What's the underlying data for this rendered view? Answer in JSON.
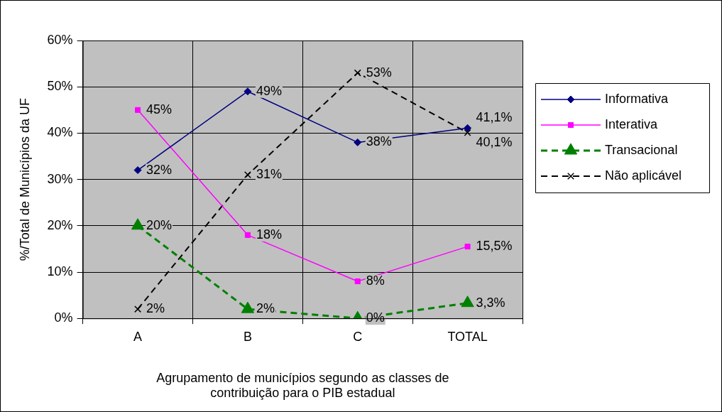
{
  "chart_data": {
    "type": "line",
    "xlabel": "Agrupamento de municípios segundo as classes de\ncontribuição para o PIB estadual",
    "ylabel": "%/Total de Municípios da UF",
    "categories": [
      "A",
      "B",
      "C",
      "TOTAL"
    ],
    "ylim": [
      0,
      60
    ],
    "yticks": [
      {
        "value": 0,
        "label": "0%"
      },
      {
        "value": 10,
        "label": "10%"
      },
      {
        "value": 20,
        "label": "20%"
      },
      {
        "value": 30,
        "label": "30%"
      },
      {
        "value": 40,
        "label": "40%"
      },
      {
        "value": 50,
        "label": "50%"
      },
      {
        "value": 60,
        "label": "60%"
      }
    ],
    "grid": true,
    "legend": "right",
    "series": [
      {
        "name": "Informativa",
        "color": "#000080",
        "marker": "diamond",
        "line_style": "solid",
        "values": [
          32,
          49,
          38,
          41.1
        ],
        "value_labels": [
          "32%",
          "49%",
          "38%",
          "41,1%"
        ]
      },
      {
        "name": "Interativa",
        "color": "#ff00ff",
        "marker": "square",
        "line_style": "solid",
        "values": [
          45,
          18,
          8,
          15.5
        ],
        "value_labels": [
          "45%",
          "18%",
          "8%",
          "15,5%"
        ]
      },
      {
        "name": "Transacional",
        "color": "#008000",
        "marker": "triangle",
        "line_style": "dashed",
        "values": [
          20,
          2,
          0,
          3.3
        ],
        "value_labels": [
          "20%",
          "2%",
          "0%",
          "3,3%"
        ]
      },
      {
        "name": "Não aplicável",
        "color": "#000000",
        "marker": "cross",
        "line_style": "dashed",
        "values": [
          2,
          31,
          53,
          40.1
        ],
        "value_labels": [
          "2%",
          "31%",
          "53%",
          "40,1%"
        ]
      }
    ]
  }
}
